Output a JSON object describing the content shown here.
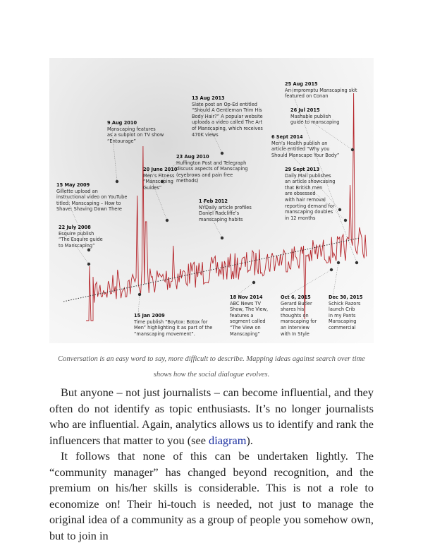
{
  "figure": {
    "annotations": [
      {
        "date": "25 Aug 2015",
        "lines": [
          "An impromptu Manscaping skit",
          "featured on Conan"
        ]
      },
      {
        "date": "13 Aug 2013",
        "lines": [
          "Slate post an Op-Ed entitled",
          "“Should A Gentleman Trim His",
          "Body Hair?” A popular website",
          "uploads a video called The Art",
          "of Manscaping, which receives",
          "470K views"
        ]
      },
      {
        "date": "26 Jul 2015",
        "lines": [
          "Mashable publish",
          "guide to manscaping"
        ]
      },
      {
        "date": "9 Aug 2010",
        "lines": [
          "Manscaping features",
          "as a subplot on TV show",
          "“Entourage”"
        ]
      },
      {
        "date": "6 Sept 2014",
        "lines": [
          "Men’s Health publish an",
          "article entitled “Why you",
          "Should Manscape Your Body”"
        ]
      },
      {
        "date": "23 Aug 2010",
        "lines": [
          "Huffington Post and Telegraph",
          "discuss aspects of Manscaping",
          "(eyebrows and pain free",
          "methods)"
        ]
      },
      {
        "date": "20 June 2010",
        "lines": [
          "Men’s Fitness",
          "“Manscaping",
          "Guides”"
        ]
      },
      {
        "date": "29 Sept 2013",
        "lines": [
          "Daily Mail publishes",
          "an article showcasing",
          "that British men",
          "are obsessed",
          "with hair removal",
          "reporting demand for",
          "manscaping doubles",
          "in 12 months"
        ]
      },
      {
        "date": "15 May 2009",
        "lines": [
          "Gillette upload an",
          "instructional video on YouTube",
          "titled: Manscaping – How to",
          "Shave: Shaving Down There"
        ]
      },
      {
        "date": "1 Feb 2012",
        "lines": [
          "NYDaily article profiles",
          "Daniel Radcliffe’s",
          "manscaping habits"
        ]
      },
      {
        "date": "22 July 2008",
        "lines": [
          "Esquire publish",
          "“The Esquire guide",
          "to Manscaping”"
        ]
      },
      {
        "date": "18 Nov 2014",
        "lines": [
          "ABC News TV",
          "Show, The View,",
          "features a",
          "segment called",
          "“The View on",
          "Manscaping”"
        ]
      },
      {
        "date": "Oct 6, 2015",
        "lines": [
          "Gerard Butler",
          "shares his",
          "thoughts on",
          "manscaping for",
          "an interview",
          "with In Style"
        ]
      },
      {
        "date": "Dec 30, 2015",
        "lines": [
          "Schick Razors",
          "launch Crib",
          "in my Pants",
          "Manscaping",
          "commercial"
        ]
      },
      {
        "date": "15 Jan 2009",
        "lines": [
          "Time publish “Boytox: Botox for",
          "Men” highlighting it as part of the",
          "“manscaping movement”."
        ]
      }
    ]
  },
  "caption": "Conversation is an easy word to say, more difficult to describe. Mapping ideas against search over time shows how the social dialogue evolves.",
  "paragraphs": [
    {
      "before": "But anyone – not just journalists – can become influential, and they often do not identify as topic enthusiasts. It’s no longer journalists who are influential. Again, analytics allows us to identify and rank the influencers that matter to you (see ",
      "link": "diagram",
      "after": ")."
    },
    {
      "text": "It follows that none of this can be undertaken lightly. The “community manager” has changed beyond recognition, and the premium on his/her skills is considerable. This is not a role to economize on! Their hi-touch is needed, not just to manage the original idea of a community as a group of people you somehow own, but to join in"
    }
  ]
}
